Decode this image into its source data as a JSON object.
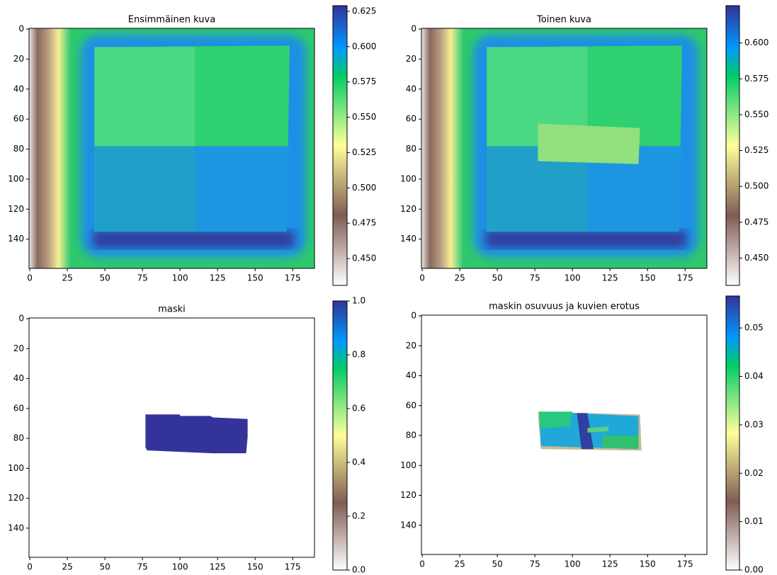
{
  "chart_data": [
    {
      "type": "heatmap",
      "title": "Ensimmäinen kuva",
      "xlim": [
        -0.5,
        189.5
      ],
      "ylim": [
        159.5,
        -0.5
      ],
      "xticks": [
        0,
        25,
        50,
        75,
        100,
        125,
        150,
        175
      ],
      "yticks": [
        0,
        20,
        40,
        60,
        80,
        100,
        120,
        140
      ],
      "clim": [
        0.431,
        0.629
      ],
      "cticks": [
        {
          "value": 0.45,
          "label": "0.450"
        },
        {
          "value": 0.475,
          "label": "0.475"
        },
        {
          "value": 0.5,
          "label": "0.500"
        },
        {
          "value": 0.525,
          "label": "0.525"
        },
        {
          "value": 0.55,
          "label": "0.550"
        },
        {
          "value": 0.575,
          "label": "0.575"
        },
        {
          "value": 0.6,
          "label": "0.600"
        },
        {
          "value": 0.625,
          "label": "0.625"
        }
      ]
    },
    {
      "type": "heatmap",
      "title": "Toinen kuva",
      "xlim": [
        -0.5,
        189.5
      ],
      "ylim": [
        159.5,
        -0.5
      ],
      "xticks": [
        0,
        25,
        50,
        75,
        100,
        125,
        150,
        175
      ],
      "yticks": [
        0,
        20,
        40,
        60,
        80,
        100,
        120,
        140
      ],
      "clim": [
        0.431,
        0.626
      ],
      "cticks": [
        {
          "value": 0.45,
          "label": "0.450"
        },
        {
          "value": 0.475,
          "label": "0.475"
        },
        {
          "value": 0.5,
          "label": "0.500"
        },
        {
          "value": 0.525,
          "label": "0.525"
        },
        {
          "value": 0.55,
          "label": "0.550"
        },
        {
          "value": 0.575,
          "label": "0.575"
        },
        {
          "value": 0.6,
          "label": "0.600"
        }
      ]
    },
    {
      "type": "heatmap",
      "title": "maski",
      "xlim": [
        -0.5,
        189.5
      ],
      "ylim": [
        159.5,
        -0.5
      ],
      "xticks": [
        0,
        25,
        50,
        75,
        100,
        125,
        150,
        175
      ],
      "yticks": [
        0,
        20,
        40,
        60,
        80,
        100,
        120,
        140
      ],
      "clim": [
        0,
        1
      ],
      "cticks": [
        {
          "value": 0,
          "label": "0.0"
        },
        0.2,
        0.4,
        0.6,
        0.8,
        {
          "value": 1,
          "label": "1.0"
        }
      ]
    },
    {
      "type": "heatmap",
      "title": "maskin osuvuus ja kuvien erotus",
      "xlim": [
        -0.5,
        189.5
      ],
      "ylim": [
        159.5,
        -0.5
      ],
      "xticks": [
        0,
        25,
        50,
        75,
        100,
        125,
        150,
        175
      ],
      "yticks": [
        0,
        20,
        40,
        60,
        80,
        100,
        120,
        140
      ],
      "clim": [
        0,
        0.0566
      ],
      "cticks": [
        {
          "value": 0,
          "label": "0.00"
        },
        0.01,
        0.02,
        0.03,
        0.04,
        0.05
      ]
    }
  ]
}
